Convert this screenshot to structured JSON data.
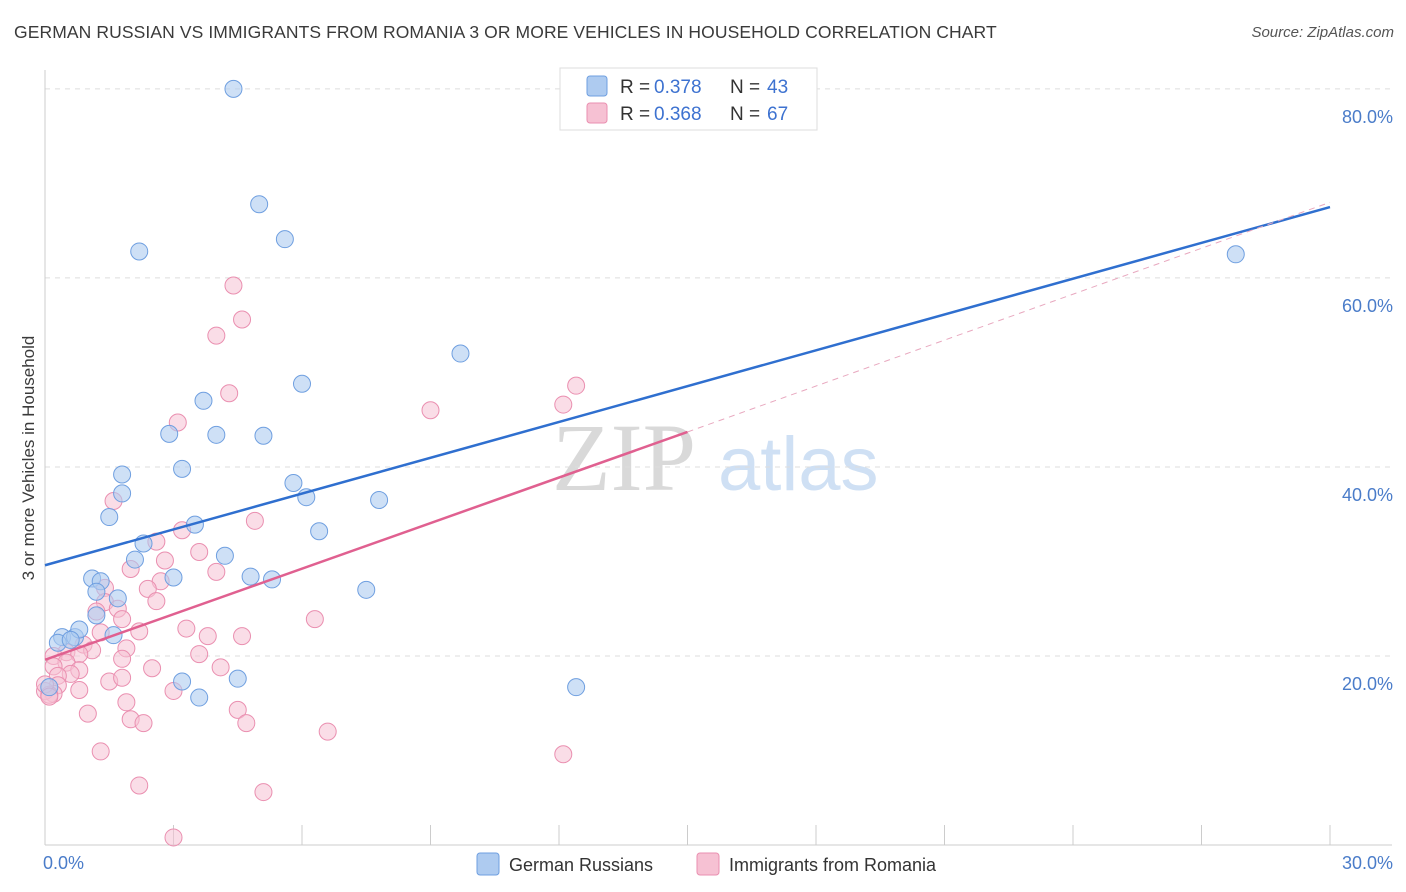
{
  "title": "GERMAN RUSSIAN VS IMMIGRANTS FROM ROMANIA 3 OR MORE VEHICLES IN HOUSEHOLD CORRELATION CHART",
  "source": "Source: ZipAtlas.com",
  "watermark": {
    "zip": "ZIP",
    "atlas": "atlas"
  },
  "legend": {
    "series1": {
      "r_label": "R =",
      "r_value": "0.378",
      "n_label": "N =",
      "n_value": "43"
    },
    "series2": {
      "r_label": "R =",
      "r_value": "0.368",
      "n_label": "N =",
      "n_value": "67"
    }
  },
  "bottom_legend": {
    "series1": "German Russians",
    "series2": "Immigrants from Romania"
  },
  "colors": {
    "blue_fill": "#aecbf0",
    "blue_stroke": "#6f9fe0",
    "blue_line": "#2f6fcf",
    "pink_fill": "#f6c1d3",
    "pink_stroke": "#ea8fb0",
    "pink_line": "#e06090",
    "tick_text": "#4a7cc9",
    "grid": "#dddddd"
  },
  "chart_data": {
    "type": "scatter",
    "title": "GERMAN RUSSIAN VS IMMIGRANTS FROM ROMANIA 3 OR MORE VEHICLES IN HOUSEHOLD CORRELATION CHART",
    "xlabel": "",
    "ylabel": "3 or more Vehicles in Household",
    "xlim": [
      0,
      30
    ],
    "ylim": [
      0,
      82
    ],
    "x_tick_labels": [
      {
        "value": 0,
        "label": "0.0%"
      },
      {
        "value": 30,
        "label": "30.0%"
      }
    ],
    "y_tick_labels": [
      {
        "value": 20,
        "label": "20.0%"
      },
      {
        "value": 40,
        "label": "40.0%"
      },
      {
        "value": 60,
        "label": "60.0%"
      },
      {
        "value": 80,
        "label": "80.0%"
      }
    ],
    "x_minor_ticks": [
      3,
      6,
      9,
      12,
      15,
      18,
      21,
      24,
      27,
      30
    ],
    "y_grid": [
      20,
      40,
      60,
      80
    ],
    "series": [
      {
        "name": "German Russians",
        "points": [
          [
            4.4,
            80.0
          ],
          [
            5.0,
            67.8
          ],
          [
            2.2,
            62.8
          ],
          [
            5.6,
            64.1
          ],
          [
            9.7,
            52.0
          ],
          [
            6.0,
            48.8
          ],
          [
            3.7,
            47.0
          ],
          [
            2.9,
            43.5
          ],
          [
            4.0,
            43.4
          ],
          [
            5.1,
            43.3
          ],
          [
            1.8,
            39.2
          ],
          [
            3.2,
            39.8
          ],
          [
            1.8,
            37.2
          ],
          [
            5.8,
            38.3
          ],
          [
            6.1,
            36.8
          ],
          [
            7.8,
            36.5
          ],
          [
            1.5,
            34.7
          ],
          [
            3.5,
            33.9
          ],
          [
            6.4,
            33.2
          ],
          [
            2.3,
            31.9
          ],
          [
            2.1,
            30.2
          ],
          [
            4.2,
            30.6
          ],
          [
            1.1,
            28.2
          ],
          [
            1.3,
            27.9
          ],
          [
            3.0,
            28.3
          ],
          [
            4.8,
            28.4
          ],
          [
            5.3,
            28.1
          ],
          [
            7.5,
            27.0
          ],
          [
            1.7,
            26.1
          ],
          [
            1.2,
            26.8
          ],
          [
            1.2,
            24.3
          ],
          [
            0.4,
            22.0
          ],
          [
            0.7,
            22.0
          ],
          [
            0.8,
            22.8
          ],
          [
            1.6,
            22.2
          ],
          [
            0.3,
            21.4
          ],
          [
            0.6,
            21.7
          ],
          [
            3.2,
            17.3
          ],
          [
            4.5,
            17.6
          ],
          [
            3.6,
            15.6
          ],
          [
            12.4,
            16.7
          ],
          [
            27.8,
            62.5
          ],
          [
            0.1,
            16.7
          ]
        ]
      },
      {
        "name": "Immigrants from Romania",
        "points": [
          [
            4.4,
            59.2
          ],
          [
            4.6,
            55.6
          ],
          [
            4.0,
            53.9
          ],
          [
            4.3,
            47.8
          ],
          [
            12.4,
            48.6
          ],
          [
            12.1,
            46.6
          ],
          [
            9.0,
            46.0
          ],
          [
            3.1,
            44.7
          ],
          [
            1.6,
            36.4
          ],
          [
            4.9,
            34.3
          ],
          [
            3.2,
            33.3
          ],
          [
            2.6,
            32.1
          ],
          [
            3.6,
            31.0
          ],
          [
            2.8,
            30.1
          ],
          [
            2.0,
            29.2
          ],
          [
            4.0,
            28.9
          ],
          [
            2.7,
            27.9
          ],
          [
            2.4,
            27.1
          ],
          [
            1.4,
            27.2
          ],
          [
            1.4,
            25.7
          ],
          [
            2.6,
            25.8
          ],
          [
            1.7,
            25.0
          ],
          [
            1.2,
            24.7
          ],
          [
            1.8,
            23.9
          ],
          [
            6.3,
            23.9
          ],
          [
            3.3,
            22.9
          ],
          [
            2.2,
            22.6
          ],
          [
            1.3,
            22.5
          ],
          [
            3.8,
            22.1
          ],
          [
            4.6,
            22.1
          ],
          [
            0.9,
            21.2
          ],
          [
            1.9,
            20.8
          ],
          [
            1.1,
            20.6
          ],
          [
            3.6,
            20.2
          ],
          [
            0.5,
            20.4
          ],
          [
            0.8,
            20.2
          ],
          [
            0.2,
            20.0
          ],
          [
            1.8,
            19.7
          ],
          [
            0.5,
            19.3
          ],
          [
            0.2,
            18.9
          ],
          [
            2.5,
            18.7
          ],
          [
            0.8,
            18.5
          ],
          [
            0.6,
            18.1
          ],
          [
            0.3,
            17.9
          ],
          [
            1.5,
            17.3
          ],
          [
            1.8,
            17.7
          ],
          [
            4.1,
            18.8
          ],
          [
            0.3,
            16.9
          ],
          [
            0.8,
            16.4
          ],
          [
            3.0,
            16.3
          ],
          [
            0.2,
            16.0
          ],
          [
            0.0,
            16.3
          ],
          [
            0.1,
            15.9
          ],
          [
            1.9,
            15.1
          ],
          [
            4.5,
            14.3
          ],
          [
            1.0,
            13.9
          ],
          [
            2.0,
            13.3
          ],
          [
            2.3,
            12.9
          ],
          [
            4.7,
            12.9
          ],
          [
            6.6,
            12.0
          ],
          [
            1.3,
            9.9
          ],
          [
            12.1,
            9.6
          ],
          [
            2.2,
            6.3
          ],
          [
            5.1,
            5.6
          ],
          [
            3.0,
            0.8
          ],
          [
            0.0,
            17.0
          ],
          [
            0.1,
            15.7
          ]
        ]
      }
    ],
    "trend_lines": [
      {
        "series": "German Russians",
        "x": [
          0,
          30
        ],
        "y": [
          29.6,
          67.5
        ],
        "style": "solid"
      },
      {
        "series": "Immigrants from Romania",
        "x": [
          0,
          15
        ],
        "y": [
          19.6,
          43.7
        ],
        "style": "solid"
      },
      {
        "series": "Immigrants from Romania",
        "x": [
          15,
          30
        ],
        "y": [
          43.7,
          68.0
        ],
        "style": "dashed"
      }
    ]
  }
}
